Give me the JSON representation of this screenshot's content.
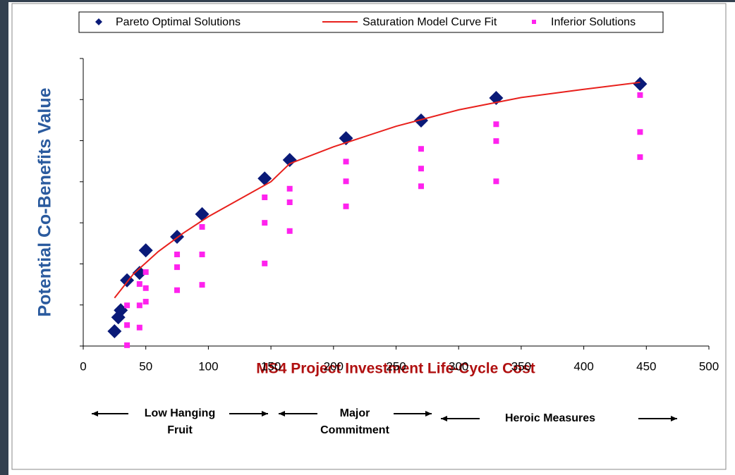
{
  "chart_data": {
    "type": "scatter",
    "legend": "top",
    "xlim": [
      0,
      500
    ],
    "xticks": [
      0,
      50,
      100,
      150,
      200,
      250,
      300,
      350,
      400,
      450,
      500
    ],
    "ylim": [
      0,
      7
    ],
    "yticks": [
      0,
      1,
      2,
      3,
      4,
      5,
      6,
      7
    ],
    "y_label": "Potential Co-Benefits Value",
    "x_label": "MS4 Project Investment Life-Cycle Cost",
    "series": [
      {
        "name": "Pareto Optimal Solutions",
        "type": "scatter",
        "marker": "diamond",
        "color": "#0a1a78",
        "x": [
          25,
          28,
          30,
          35,
          45,
          50,
          75,
          95,
          145,
          165,
          210,
          270,
          330,
          445
        ],
        "values": [
          0.36,
          0.7,
          0.87,
          1.6,
          1.78,
          2.33,
          2.66,
          3.21,
          4.08,
          4.53,
          5.06,
          5.49,
          6.04,
          6.38
        ]
      },
      {
        "name": "Saturation Model Curve Fit",
        "type": "line",
        "color": "#e8201c",
        "x": [
          25,
          40,
          60,
          80,
          100,
          150,
          165,
          200,
          250,
          300,
          350,
          400,
          445
        ],
        "values": [
          1.17,
          1.75,
          2.3,
          2.75,
          3.15,
          4.0,
          4.44,
          4.85,
          5.35,
          5.75,
          6.05,
          6.25,
          6.42
        ]
      },
      {
        "name": "Inferior Solutions",
        "type": "scatter",
        "marker": "square",
        "color": "#ff22ee",
        "x": [
          35,
          35,
          35,
          45,
          45,
          45,
          50,
          50,
          50,
          75,
          75,
          75,
          95,
          95,
          95,
          145,
          145,
          145,
          165,
          165,
          165,
          210,
          210,
          210,
          270,
          270,
          270,
          330,
          330,
          330,
          445,
          445,
          445
        ],
        "values": [
          0.99,
          0.51,
          0.02,
          1.51,
          0.99,
          0.45,
          1.8,
          1.41,
          1.08,
          2.23,
          1.92,
          1.36,
          2.9,
          2.23,
          1.49,
          3.62,
          3.0,
          2.01,
          3.83,
          3.5,
          2.8,
          4.49,
          4.01,
          3.4,
          4.8,
          4.32,
          3.89,
          5.4,
          4.99,
          4.01,
          6.11,
          5.21,
          4.6
        ]
      }
    ],
    "annotations": [
      {
        "lines": [
          "Low Hanging",
          "Fruit"
        ]
      },
      {
        "lines": [
          "Major",
          "Commitment"
        ]
      },
      {
        "lines": [
          "Heroic Measures"
        ]
      }
    ]
  }
}
